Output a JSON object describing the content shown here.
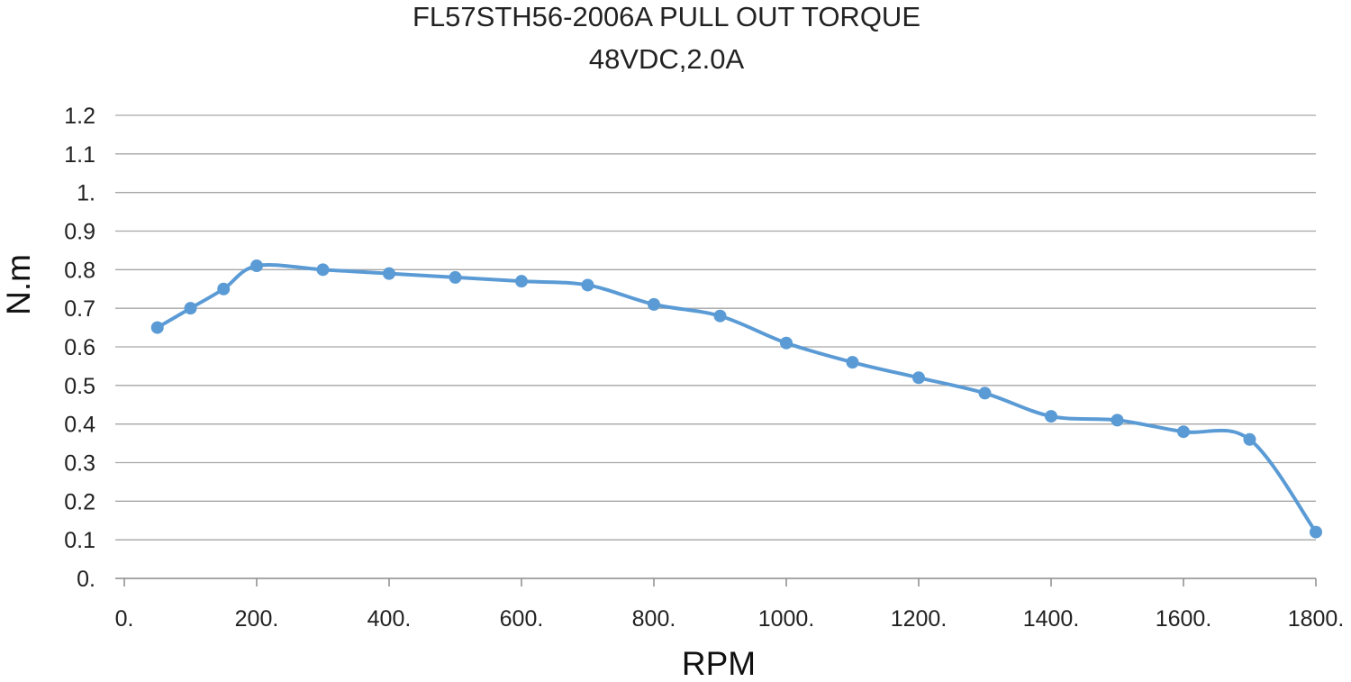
{
  "chart_data": {
    "type": "line",
    "title": "FL57STH56-2006A PULL OUT TORQUE",
    "subtitle": "48VDC,2.0A",
    "xlabel": "RPM",
    "ylabel": "N.m",
    "xlim": [
      0,
      1800
    ],
    "ylim": [
      0,
      1.2
    ],
    "x_ticks": [
      0,
      200,
      400,
      600,
      800,
      1000,
      1200,
      1400,
      1600,
      1800
    ],
    "x_tick_labels": [
      "0.",
      "200.",
      "400.",
      "600.",
      "800.",
      "1000.",
      "1200.",
      "1400.",
      "1600.",
      "1800."
    ],
    "y_ticks": [
      0,
      0.1,
      0.2,
      0.3,
      0.4,
      0.5,
      0.6,
      0.7,
      0.8,
      0.9,
      1.0,
      1.1,
      1.2
    ],
    "y_tick_labels": [
      "0.",
      "0.1",
      "0.2",
      "0.3",
      "0.4",
      "0.5",
      "0.6",
      "0.7",
      "0.8",
      "0.9",
      "1.",
      "1.1",
      "1.2"
    ],
    "grid": "horizontal",
    "series": [
      {
        "color": "#5b9bd5",
        "smooth": true,
        "markers": true,
        "x": [
          50,
          100,
          150,
          200,
          300,
          400,
          500,
          600,
          700,
          800,
          900,
          1000,
          1100,
          1200,
          1300,
          1400,
          1500,
          1600,
          1700,
          1800
        ],
        "y": [
          0.65,
          0.7,
          0.75,
          0.81,
          0.8,
          0.79,
          0.78,
          0.77,
          0.76,
          0.71,
          0.68,
          0.61,
          0.56,
          0.52,
          0.48,
          0.42,
          0.41,
          0.38,
          0.36,
          0.12
        ]
      }
    ]
  }
}
